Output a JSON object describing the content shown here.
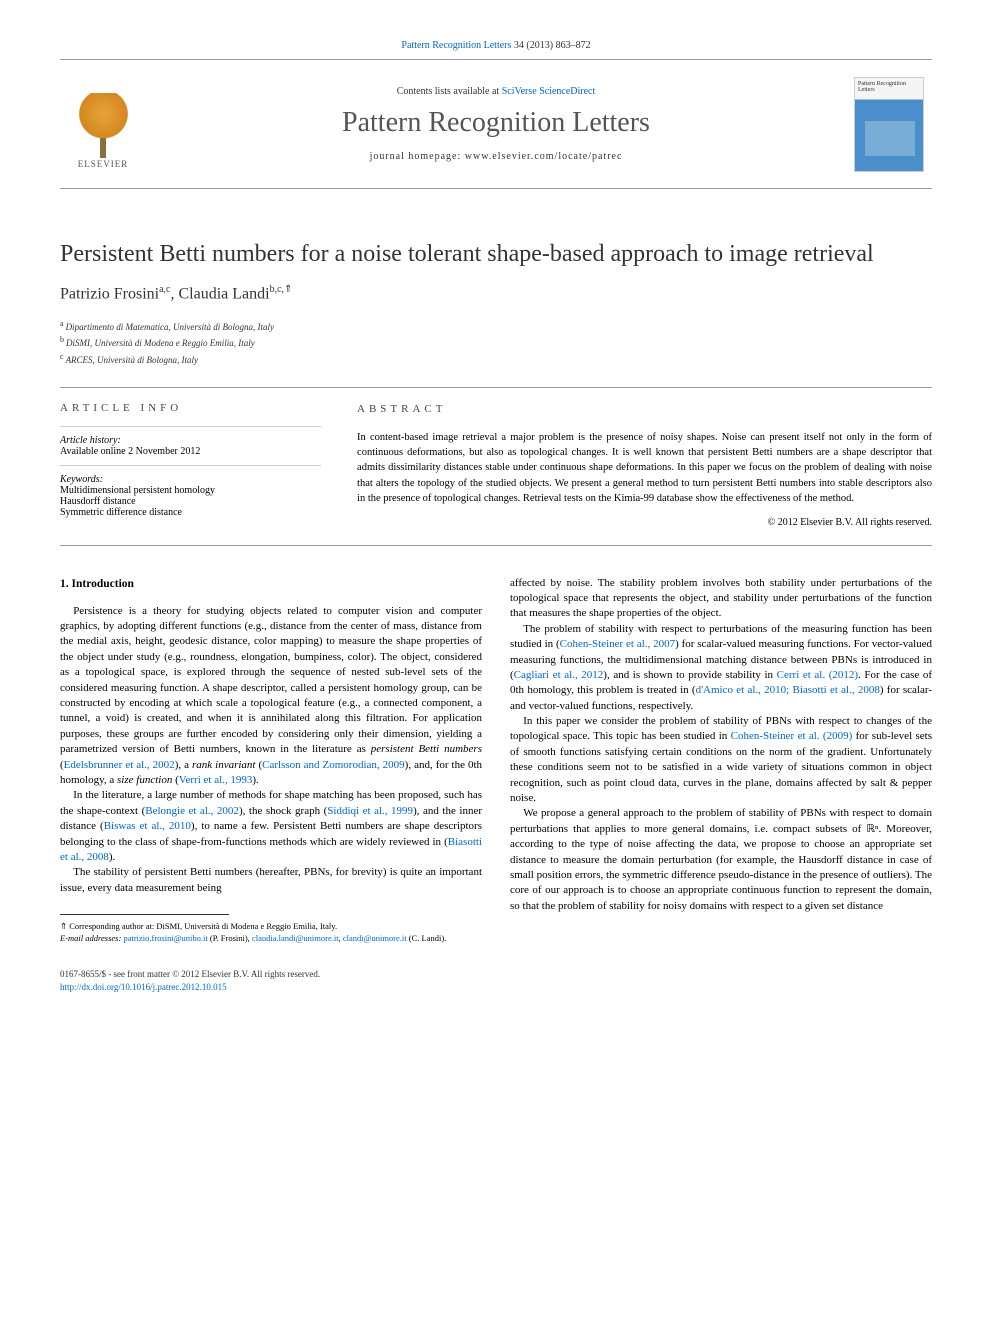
{
  "citation": {
    "journal_link": "Pattern Recognition Letters",
    "citation_text": " 34 (2013) 863–872"
  },
  "masthead": {
    "elsevier_label": "ELSEVIER",
    "contents_prefix": "Contents lists available at ",
    "contents_link": "SciVerse ScienceDirect",
    "journal_name": "Pattern Recognition Letters",
    "homepage_prefix": "journal homepage: ",
    "homepage_url": "www.elsevier.com/locate/patrec",
    "cover_text": "Pattern Recognition Letters"
  },
  "title": "Persistent Betti numbers for a noise tolerant shape-based approach to image retrieval",
  "authors": {
    "a1_name": "Patrizio Frosini",
    "a1_sup": "a,c",
    "a2_name": "Claudia Landi",
    "a2_sup": "b,c,",
    "a2_corr": "⇑"
  },
  "affiliations": {
    "a": "Dipartimento di Matematica, Università di Bologna, Italy",
    "b": "DiSMI, Università di Modena e Reggio Emilia, Italy",
    "c": "ARCES, Università di Bologna, Italy"
  },
  "article_info": {
    "heading": "article info",
    "history_label": "Article history:",
    "history_text": "Available online 2 November 2012",
    "keywords_label": "Keywords:",
    "kw1": "Multidimensional persistent homology",
    "kw2": "Hausdorff distance",
    "kw3": "Symmetric difference distance"
  },
  "abstract": {
    "heading": "abstract",
    "text": "In content-based image retrieval a major problem is the presence of noisy shapes. Noise can present itself not only in the form of continuous deformations, but also as topological changes. It is well known that persistent Betti numbers are a shape descriptor that admits dissimilarity distances stable under continuous shape deformations. In this paper we focus on the problem of dealing with noise that alters the topology of the studied objects. We present a general method to turn persistent Betti numbers into stable descriptors also in the presence of topological changes. Retrieval tests on the Kimia-99 database show the effectiveness of the method.",
    "copyright": "© 2012 Elsevier B.V. All rights reserved."
  },
  "body": {
    "section1_heading": "1. Introduction",
    "p1a": "Persistence is a theory for studying objects related to computer vision and computer graphics, by adopting different functions (e.g., distance from the center of mass, distance from the medial axis, height, geodesic distance, color mapping) to measure the shape properties of the object under study (e.g., roundness, elongation, bumpiness, color). The object, considered as a topological space, is explored through the sequence of nested sub-level sets of the considered measuring function. A shape descriptor, called a persistent homology group, can be constructed by encoding at which scale a topological feature (e.g., a connected component, a tunnel, a void) is created, and when it is annihilated along this filtration. For application purposes, these groups are further encoded by considering only their dimension, yielding a parametrized version of Betti numbers, known in the literature as ",
    "p1_em1": "persistent Betti numbers",
    "p1b": " (",
    "p1_link1": "Edelsbrunner et al., 2002",
    "p1c": "), a ",
    "p1_em2": "rank invariant",
    "p1d": " (",
    "p1_link2": "Carlsson and Zomorodian, 2009",
    "p1e": "), and, for the 0th homology, a ",
    "p1_em3": "size function",
    "p1f": " (",
    "p1_link3": "Verri et al., 1993",
    "p1g": ").",
    "p2a": "In the literature, a large number of methods for shape matching has been proposed, such has the shape-context (",
    "p2_link1": "Belongie et al., 2002",
    "p2b": "), the shock graph (",
    "p2_link2": "Siddiqi et al., 1999",
    "p2c": "), and the inner distance (",
    "p2_link3": "Biswas et al., 2010",
    "p2d": "), to name a few. Persistent Betti numbers are shape descriptors belonging to the class of shape-from-functions methods which are widely reviewed in (",
    "p2_link4": "Biasotti et al., 2008",
    "p2e": ").",
    "p3": "The stability of persistent Betti numbers (hereafter, PBNs, for brevity) is quite an important issue, every data measurement being",
    "p4": "affected by noise. The stability problem involves both stability under perturbations of the topological space that represents the object, and stability under perturbations of the function that measures the shape properties of the object.",
    "p5a": "The problem of stability with respect to perturbations of the measuring function has been studied in (",
    "p5_link1": "Cohen-Steiner et al., 2007",
    "p5b": ") for scalar-valued measuring functions. For vector-valued measuring functions, the multidimensional matching distance between PBNs is introduced in (",
    "p5_link2": "Cagliari et al., 2012",
    "p5c": "), and is shown to provide stability in ",
    "p5_link3": "Cerri et al. (2012)",
    "p5d": ". For the case of 0th homology, this problem is treated in (",
    "p5_link4": "d'Amico et al., 2010; Biasotti et al., 2008",
    "p5e": ") for scalar- and vector-valued functions, respectively.",
    "p6a": "In this paper we consider the problem of stability of PBNs with respect to changes of the topological space. This topic has been studied in ",
    "p6_link1": "Cohen-Steiner et al. (2009)",
    "p6b": " for sub-level sets of smooth functions satisfying certain conditions on the norm of the gradient. Unfortunately these conditions seem not to be satisfied in a wide variety of situations common in object recognition, such as point cloud data, curves in the plane, domains affected by salt & pepper noise.",
    "p7": "We propose a general approach to the problem of stability of PBNs with respect to domain perturbations that applies to more general domains, i.e. compact subsets of ℝⁿ. Moreover, according to the type of noise affecting the data, we propose to choose an appropriate set distance to measure the domain perturbation (for example, the Hausdorff distance in case of small position errors, the symmetric difference pseudo-distance in the presence of outliers). The core of our approach is to choose an appropriate continuous function to represent the domain, so that the problem of stability for noisy domains with respect to a given set distance"
  },
  "footnotes": {
    "corr_marker": "⇑",
    "corr_text": " Corresponding author at: DiSMI, Università di Modena e Reggio Emilia, Italy.",
    "email_label": "E-mail addresses:",
    "email1": "patrizio.frosini@unibo.it",
    "email1_who": " (P. Frosini), ",
    "email2": "claudia.landi@unimore.it",
    "email2_sep": ", ",
    "email3": "clandi@unimore.it",
    "email3_who": " (C. Landi)."
  },
  "footer": {
    "issn_line": "0167-8655/$ - see front matter © 2012 Elsevier B.V. All rights reserved.",
    "doi": "http://dx.doi.org/10.1016/j.patrec.2012.10.015"
  },
  "colors": {
    "link": "#0066cc",
    "text": "#000000",
    "rule": "#999999"
  }
}
